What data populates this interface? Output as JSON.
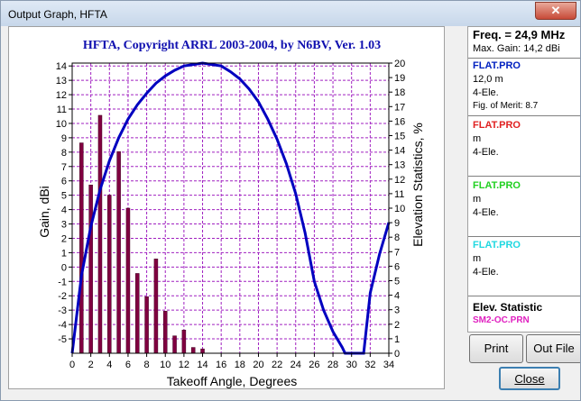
{
  "window": {
    "title": "Output Graph, HFTA"
  },
  "chart": {
    "title": "HFTA, Copyright ARRL 2003-2004, by N6BV, Ver. 1.03",
    "xlabel": "Takeoff Angle, Degrees",
    "ylabel_left": "Gain, dBi",
    "ylabel_right": "Elevation Statistics, %"
  },
  "chart_data": {
    "type": "bar",
    "title": "HFTA, Copyright ARRL 2003-2004, by N6BV, Ver. 1.03",
    "xlabel": "Takeoff Angle, Degrees",
    "ylabel": "Gain, dBi",
    "y2label": "Elevation Statistics, %",
    "xlim": [
      0,
      34
    ],
    "ylim": [
      -6,
      14.2
    ],
    "y2lim": [
      0,
      20
    ],
    "grid": true,
    "x_ticks": [
      0,
      2,
      4,
      6,
      8,
      10,
      12,
      14,
      16,
      18,
      20,
      22,
      24,
      26,
      28,
      30,
      32,
      34
    ],
    "y_ticks": [
      -5,
      -4,
      -3,
      -2,
      -1,
      0,
      1,
      2,
      3,
      4,
      5,
      6,
      7,
      8,
      9,
      10,
      11,
      12,
      13,
      14
    ],
    "y2_ticks": [
      0,
      1,
      2,
      3,
      4,
      5,
      6,
      7,
      8,
      9,
      10,
      11,
      12,
      13,
      14,
      15,
      16,
      17,
      18,
      19,
      20
    ],
    "series": [
      {
        "kind": "bar",
        "axis": "right",
        "color": "#800040",
        "x": [
          1,
          2,
          3,
          4,
          5,
          6,
          7,
          8,
          9,
          10,
          11,
          12,
          13,
          14
        ],
        "values": [
          14.5,
          11.6,
          16.4,
          10.9,
          13.9,
          10.0,
          5.5,
          3.9,
          6.5,
          2.9,
          1.2,
          1.6,
          0.4,
          0.3
        ]
      },
      {
        "kind": "line",
        "axis": "left",
        "color": "#0000c0",
        "x": [
          0,
          1,
          2,
          3,
          4,
          5,
          6,
          7,
          8,
          9,
          10,
          11,
          12,
          13,
          14,
          15,
          16,
          17,
          18,
          19,
          20,
          21,
          22,
          23,
          24,
          25,
          26,
          27,
          28,
          29,
          29.3,
          30,
          31,
          31.3,
          32,
          33,
          34
        ],
        "values": [
          -6,
          -0.6,
          2.8,
          5.4,
          7.4,
          9.0,
          10.3,
          11.3,
          12.1,
          12.8,
          13.3,
          13.7,
          14.0,
          14.1,
          14.2,
          14.1,
          14.0,
          13.6,
          13.1,
          12.4,
          11.5,
          10.3,
          8.9,
          7.2,
          5.1,
          2.4,
          -1.0,
          -3.0,
          -4.5,
          -5.6,
          -6,
          -6,
          -6,
          -6,
          -1.8,
          0.9,
          3.1
        ]
      }
    ]
  },
  "panel": {
    "freq": "Freq. = 24,9 MHz",
    "max_gain": "Max. Gain: 14,2 dBi",
    "antennas": [
      {
        "name": "FLAT.PRO",
        "color": "#0020c0",
        "height": "12,0 m",
        "type": "4-Ele.",
        "fom": "Fig. of Merit:  8.7"
      },
      {
        "name": "FLAT.PRO",
        "color": "#e02020",
        "height": " m",
        "type": "4-Ele."
      },
      {
        "name": "FLAT.PRO",
        "color": "#20d020",
        "height": " m",
        "type": "4-Ele."
      },
      {
        "name": "FLAT.PRO",
        "color": "#20d8e0",
        "height": " m",
        "type": "4-Ele."
      }
    ],
    "elev_title": "Elev. Statistic",
    "elev_file": "SM2-OC.PRN"
  },
  "buttons": {
    "print": "Print",
    "outfile": "Out File",
    "close": "Close"
  }
}
